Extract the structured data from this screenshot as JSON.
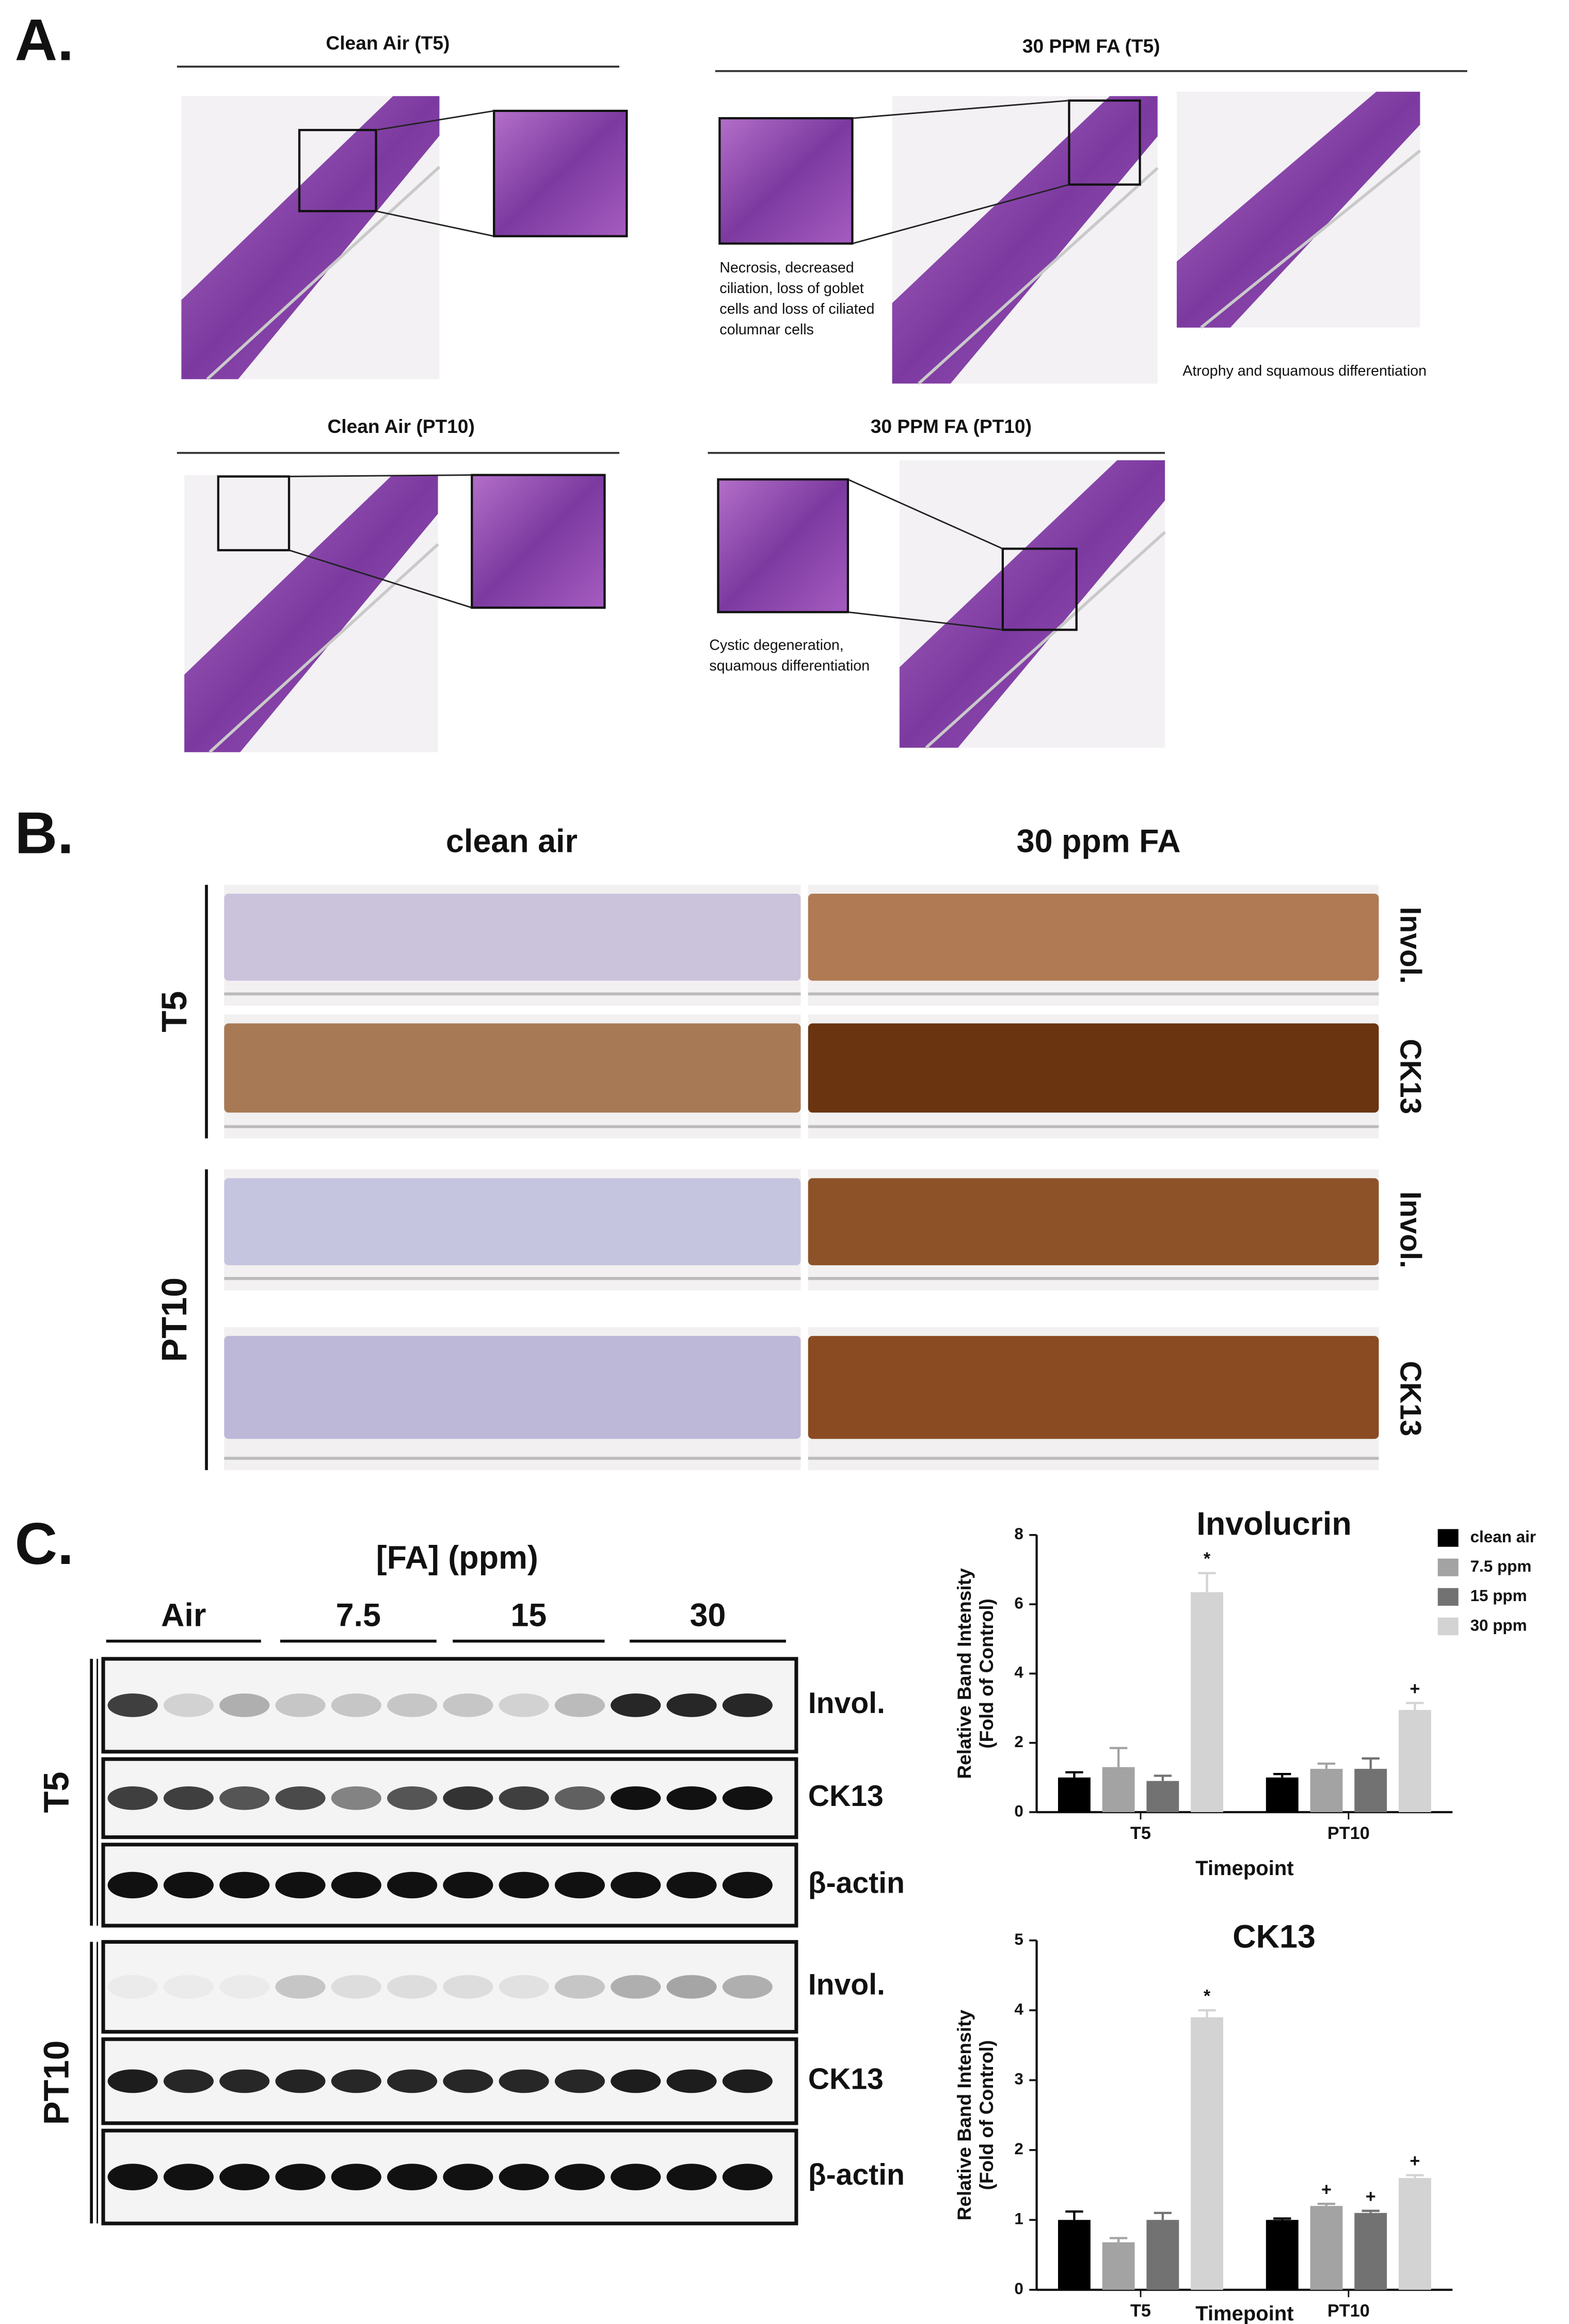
{
  "panel_a": {
    "label": "A.",
    "groups": [
      {
        "title": "Clean Air (T5)"
      },
      {
        "title": "30 PPM FA (T5)",
        "captions": [
          [
            "Necrosis, decreased",
            "ciliation, loss of goblet",
            "cells and loss of ciliated",
            "columnar cells"
          ],
          [
            "Atrophy and squamous differentiation"
          ]
        ]
      },
      {
        "title": "Clean Air (PT10)"
      },
      {
        "title": "30 PPM FA (PT10)",
        "captions": [
          [
            "Cystic degeneration,",
            "squamous differentiation"
          ]
        ]
      }
    ]
  },
  "panel_b": {
    "label": "B.",
    "columns": [
      "clean air",
      "30 ppm FA"
    ],
    "timepoints": [
      "T5",
      "PT10"
    ],
    "stains": [
      "Invol.",
      "CK13"
    ]
  },
  "panel_c": {
    "label": "C.",
    "dose_title": "[FA] (ppm)",
    "doses": [
      "Air",
      "7.5",
      "15",
      "30"
    ],
    "timepoints": [
      "T5",
      "PT10"
    ],
    "proteins": [
      "Invol.",
      "CK13",
      "β-actin"
    ]
  },
  "chart_data": [
    {
      "type": "bar",
      "title": "Involucrin",
      "y_label": [
        "Relative Band Intensity",
        "(Fold of Control)"
      ],
      "x_label": "Timepoint",
      "categories": [
        "T5",
        "PT10"
      ],
      "ylim": [
        0,
        8
      ],
      "yticks": [
        0,
        2,
        4,
        6,
        8
      ],
      "legend": "top-right",
      "series": [
        {
          "name": "clean air",
          "color": "#000000",
          "values": [
            1.0,
            1.0
          ],
          "errors": [
            0.15,
            0.1
          ],
          "markers": [
            null,
            null
          ]
        },
        {
          "name": "7.5 ppm",
          "color": "#a3a3a3",
          "values": [
            1.3,
            1.25
          ],
          "errors": [
            0.55,
            0.15
          ],
          "markers": [
            null,
            null
          ]
        },
        {
          "name": "15 ppm",
          "color": "#727272",
          "values": [
            0.9,
            1.25
          ],
          "errors": [
            0.15,
            0.3
          ],
          "markers": [
            null,
            null
          ]
        },
        {
          "name": "30 ppm",
          "color": "#d3d3d3",
          "values": [
            6.35,
            2.95
          ],
          "errors": [
            0.55,
            0.2
          ],
          "markers": [
            "*",
            "+"
          ]
        }
      ]
    },
    {
      "type": "bar",
      "title": "CK13",
      "y_label": [
        "Relative Band Intensity",
        "(Fold of Control)"
      ],
      "x_label": "Timepoint",
      "categories": [
        "T5",
        "PT10"
      ],
      "ylim": [
        0,
        5
      ],
      "yticks": [
        0,
        1,
        2,
        3,
        4,
        5
      ],
      "series": [
        {
          "color": "#000000",
          "values": [
            1.0,
            1.0
          ],
          "errors": [
            0.12,
            0.02
          ],
          "markers": [
            null,
            null
          ]
        },
        {
          "color": "#a3a3a3",
          "values": [
            0.68,
            1.2
          ],
          "errors": [
            0.06,
            0.03
          ],
          "markers": [
            null,
            "+"
          ]
        },
        {
          "color": "#727272",
          "values": [
            1.0,
            1.1
          ],
          "errors": [
            0.1,
            0.03
          ],
          "markers": [
            null,
            "+"
          ]
        },
        {
          "color": "#d3d3d3",
          "values": [
            3.9,
            1.6
          ],
          "errors": [
            0.1,
            0.04
          ],
          "markers": [
            "*",
            "+"
          ]
        }
      ]
    }
  ]
}
